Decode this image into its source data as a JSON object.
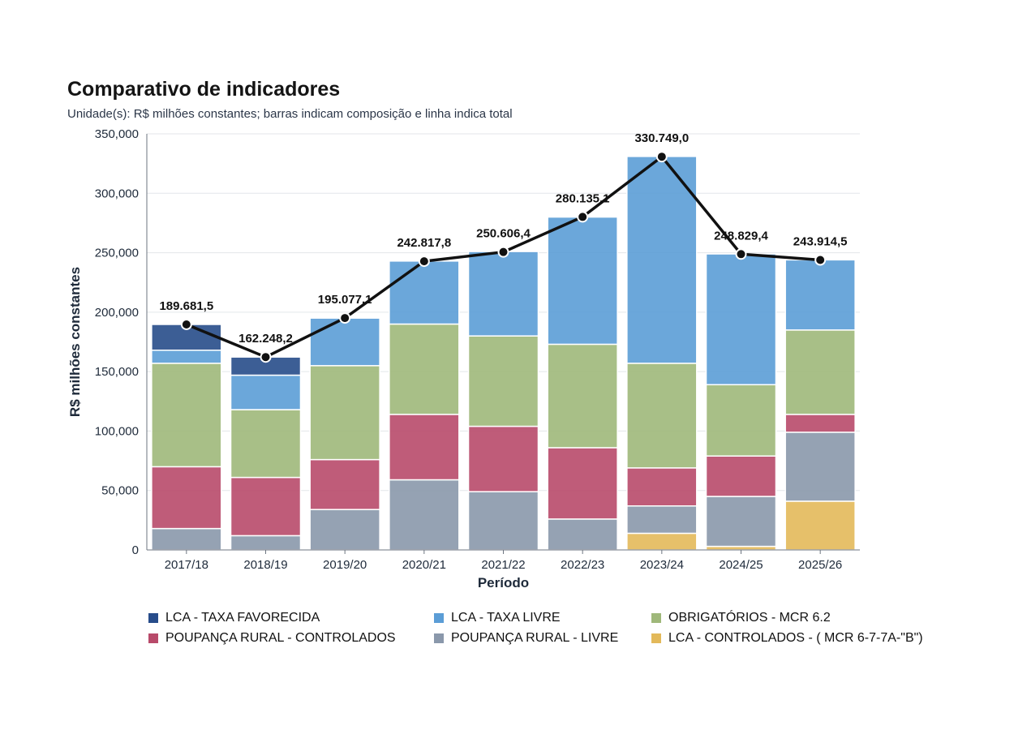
{
  "header": {
    "title": "Comparativo de indicadores",
    "subtitle": "Unidade(s): R$ milhões constantes; barras indicam composição e linha indica total"
  },
  "chart_data": {
    "type": "bar",
    "stacked": true,
    "xlabel": "Período",
    "ylabel": "R$ milhões constantes",
    "ylim": [
      0,
      350000
    ],
    "y_ticks": [
      "0",
      "50,000",
      "100,000",
      "150,000",
      "200,000",
      "250,000",
      "300,000",
      "350,000"
    ],
    "y_tick_values": [
      0,
      50000,
      100000,
      150000,
      200000,
      250000,
      300000,
      350000
    ],
    "grid": true,
    "legend_position": "bottom",
    "categories": [
      "2017/18",
      "2018/19",
      "2019/20",
      "2020/21",
      "2021/22",
      "2022/23",
      "2023/24",
      "2024/25",
      "2025/26"
    ],
    "series": [
      {
        "name": "LCA - CONTROLADOS - ( MCR 6-7-7A-\"B\")",
        "color": "#e3b95a",
        "values": [
          0,
          0,
          0,
          0,
          0,
          0,
          14000,
          3000,
          41000
        ]
      },
      {
        "name": "POUPANÇA RURAL - LIVRE",
        "color": "#8a98ab",
        "values": [
          18000,
          12000,
          34000,
          59000,
          49000,
          26000,
          23000,
          42000,
          58000
        ]
      },
      {
        "name": "POUPANÇA RURAL - CONTROLADOS",
        "color": "#b84a6a",
        "values": [
          52000,
          49000,
          42000,
          55000,
          55000,
          60000,
          32000,
          34000,
          15000
        ]
      },
      {
        "name": "OBRIGATÓRIOS - MCR 6.2",
        "color": "#9fb87a",
        "values": [
          87000,
          57000,
          79000,
          76000,
          76000,
          87000,
          88000,
          60000,
          71000
        ]
      },
      {
        "name": "LCA - TAXA LIVRE",
        "color": "#5b9dd6",
        "values": [
          11000,
          29000,
          40000,
          53000,
          71000,
          107000,
          174000,
          110000,
          59000
        ]
      },
      {
        "name": "LCA - TAXA FAVORECIDA",
        "color": "#274c8a",
        "values": [
          21681.5,
          15248.2,
          0,
          0,
          0,
          0,
          0,
          0,
          0
        ]
      }
    ],
    "total_line": {
      "values": [
        189681.5,
        162248.2,
        195077.1,
        242817.8,
        250606.4,
        280135.1,
        330749.0,
        248829.4,
        243914.5
      ],
      "labels": [
        "189.681,5",
        "162.248,2",
        "195.077,1",
        "242.817,8",
        "250.606,4",
        "280.135,1",
        "330.749,0",
        "248.829,4",
        "243.914,5"
      ],
      "color": "#111111"
    }
  },
  "legend": {
    "items": [
      {
        "label": "LCA - TAXA FAVORECIDA",
        "color": "#274c8a"
      },
      {
        "label": "LCA - TAXA LIVRE",
        "color": "#5b9dd6"
      },
      {
        "label": "OBRIGATÓRIOS - MCR 6.2",
        "color": "#9fb87a"
      },
      {
        "label": "POUPANÇA RURAL - CONTROLADOS",
        "color": "#b84a6a"
      },
      {
        "label": "POUPANÇA RURAL - LIVRE",
        "color": "#8a98ab"
      },
      {
        "label": "LCA - CONTROLADOS - ( MCR 6-7-7A-\"B\")",
        "color": "#e3b95a"
      }
    ]
  }
}
